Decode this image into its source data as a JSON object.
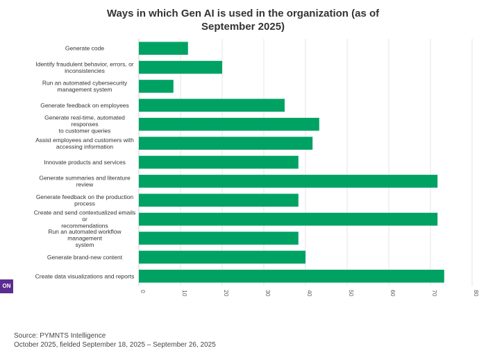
{
  "chart_data": {
    "type": "bar",
    "orientation": "horizontal",
    "title": "Ways in which Gen AI is used in the organization (as of September 2025)",
    "xlabel": "",
    "ylabel": "",
    "xlim": [
      0,
      80
    ],
    "xticks": [
      "0",
      "10",
      "20",
      "30",
      "40",
      "50",
      "60",
      "70",
      "80"
    ],
    "grid": true,
    "bar_color": "#00a264",
    "categories": [
      [
        "Generate code"
      ],
      [
        "Identify fraudulent behavior, errors, or",
        "inconsistencies"
      ],
      [
        "Run an automated cybersecurity",
        "management system"
      ],
      [
        "Generate feedback on employees"
      ],
      [
        "Generate real-time, automated",
        "responses",
        "to customer queries"
      ],
      [
        "Assist employees and customers with",
        "accessing information"
      ],
      [
        "Innovate products and services"
      ],
      [
        "Generate summaries and literature",
        "review"
      ],
      [
        "Generate feedback on the production",
        "process"
      ],
      [
        "Create and send contextualized emails",
        "or",
        "recommendations"
      ],
      [
        "Run an automated workflow",
        "management",
        "system"
      ],
      [
        "Generate brand-new content"
      ],
      [
        "Create data visualizations and reports"
      ]
    ],
    "values": [
      11.8,
      20.0,
      8.3,
      35.0,
      43.3,
      41.7,
      38.3,
      71.7,
      38.3,
      71.7,
      38.3,
      40.0,
      73.3
    ]
  },
  "badge": {
    "text": "ON",
    "color": "#5b2d90"
  },
  "source": {
    "line1": "Source: PYMNTS Intelligence",
    "line2": "October 2025, fielded September 18, 2025 – September 26, 2025"
  }
}
